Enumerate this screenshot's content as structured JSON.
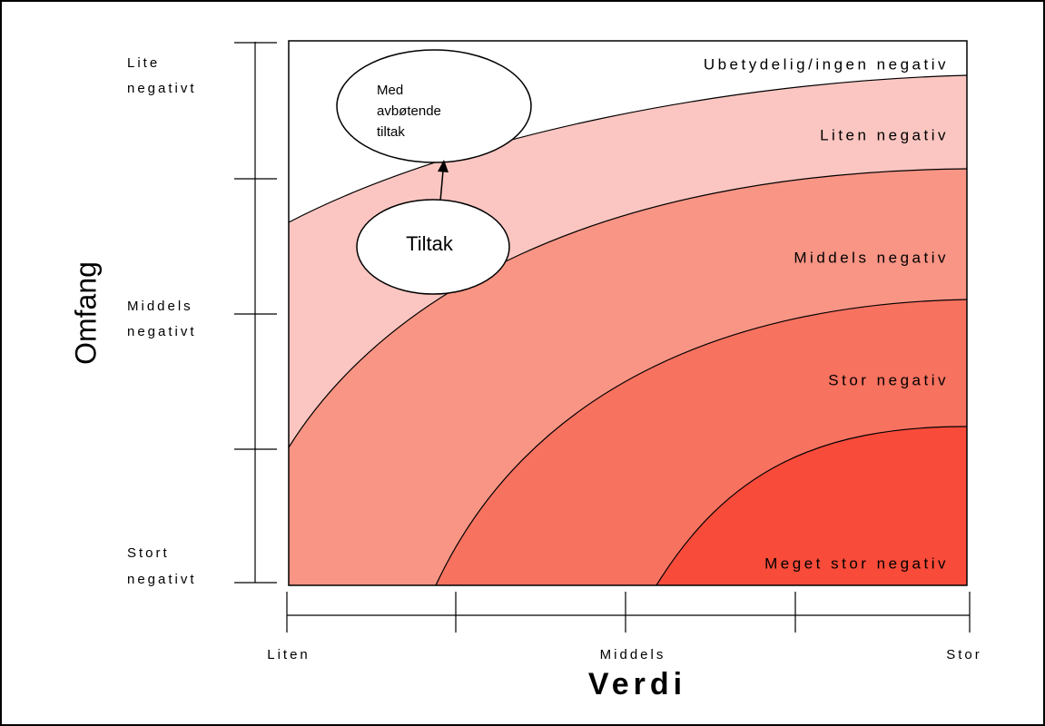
{
  "axes": {
    "y": {
      "title": "Omfang",
      "labels": [
        [
          "Lite",
          "negativt"
        ],
        [
          "Middels",
          "negativt"
        ],
        [
          "Stort",
          "negativt"
        ]
      ]
    },
    "x": {
      "title": "Verdi",
      "labels": [
        "Liten",
        "Middels",
        "Stor"
      ]
    }
  },
  "zones": [
    "Ubetydelig/ingen negativ",
    "Liten negativ",
    "Middels negativ",
    "Stor negativ",
    "Meget stor negativ"
  ],
  "bubbles": {
    "result": [
      "Med",
      "avbøtende",
      "tiltak"
    ],
    "measure": "Tiltak"
  }
}
